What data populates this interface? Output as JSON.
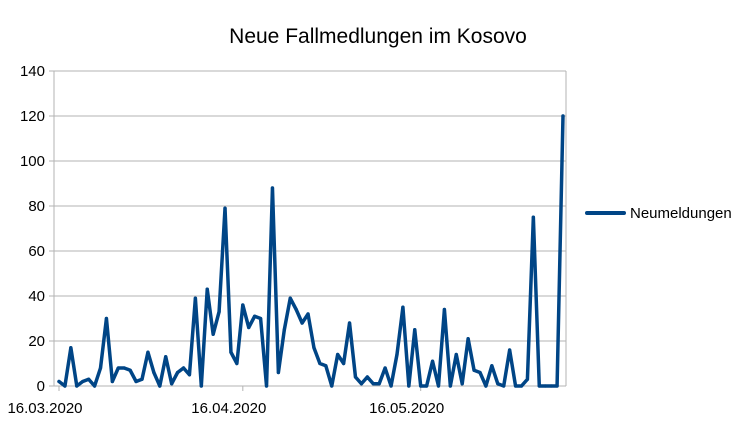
{
  "chart_data": {
    "type": "line",
    "title": "Neue Fallmedlungen im Kosovo",
    "xlabel": "",
    "ylabel": "",
    "ylim": [
      0,
      140
    ],
    "y_ticks": [
      0,
      20,
      40,
      60,
      80,
      100,
      120,
      140
    ],
    "x_start": "16.03.2020",
    "x_tick_labels": [
      "16.03.2020",
      "16.04.2020",
      "16.05.2020"
    ],
    "grid": true,
    "legend_position": "right",
    "line_color": "#004586",
    "series": [
      {
        "name": "Neumeldungen",
        "values": [
          2,
          0,
          17,
          0,
          2,
          3,
          0,
          8,
          30,
          2,
          8,
          8,
          7,
          2,
          3,
          15,
          6,
          0,
          13,
          1,
          6,
          8,
          5,
          39,
          0,
          43,
          23,
          33,
          79,
          15,
          10,
          36,
          26,
          31,
          30,
          0,
          88,
          6,
          25,
          39,
          34,
          28,
          32,
          17,
          10,
          9,
          0,
          14,
          10,
          28,
          4,
          1,
          4,
          1,
          1,
          8,
          0,
          14,
          35,
          0,
          25,
          0,
          0,
          11,
          0,
          34,
          0,
          14,
          1,
          21,
          7,
          6,
          0,
          9,
          1,
          0,
          16,
          0,
          0,
          3,
          75,
          0,
          0,
          0,
          0,
          120
        ]
      }
    ]
  }
}
